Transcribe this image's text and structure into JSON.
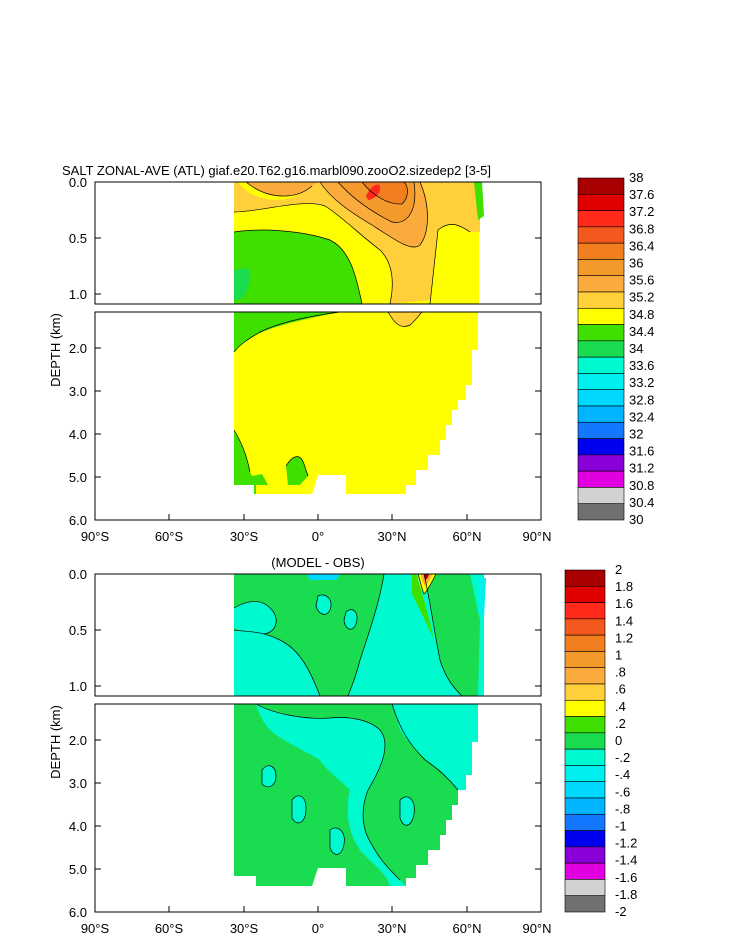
{
  "chart_data": [
    {
      "type": "heatmap",
      "title": "SALT ZONAL-AVE (ATL) giaf.e20.T62.g16.marbl090.zooO2.sizedep2 [3-5]",
      "ylabel": "DEPTH (km)",
      "xlabel": "",
      "x_ticks": [
        "90°S",
        "60°S",
        "30°S",
        "0°",
        "30°N",
        "60°N",
        "90°N"
      ],
      "x_range": [
        -90,
        90
      ],
      "y_ticks_upper": [
        "0.0",
        "0.5",
        "1.0"
      ],
      "y_ticks_lower": [
        "2.0",
        "3.0",
        "4.0",
        "5.0",
        "6.0"
      ],
      "y_range_upper_km": [
        0,
        1.1
      ],
      "y_range_lower_km": [
        1.1,
        6.0
      ],
      "legend_placement": "right",
      "colorbar_labels": [
        "38",
        "37.6",
        "37.2",
        "36.8",
        "36.4",
        "36",
        "35.6",
        "35.2",
        "34.8",
        "34.4",
        "34",
        "33.6",
        "33.2",
        "32.8",
        "32.4",
        "32",
        "31.6",
        "31.2",
        "30.8",
        "30.4",
        "30"
      ],
      "colorbar_colors": [
        "#a80000",
        "#e10000",
        "#ff2a1a",
        "#f3581c",
        "#f27f1f",
        "#f4992b",
        "#fbab3b",
        "#ffd03a",
        "#ffff00",
        "#3fdf00",
        "#1adc50",
        "#00fad0",
        "#00f0f0",
        "#00d8ff",
        "#00b4ff",
        "#1478ff",
        "#0000f0",
        "#8a00d8",
        "#e000e0",
        "#d2d2d2",
        "#707070"
      ],
      "data_extent_lat": [
        -34,
        66
      ],
      "dominant_values": {
        "deep_water": 34.9,
        "southern_intermediate_water": 34.5,
        "subtropical_max_south": 36.8,
        "subtropical_max_north": 37.4
      }
    },
    {
      "type": "heatmap",
      "title": "(MODEL - OBS)",
      "ylabel": "DEPTH (km)",
      "xlabel": "",
      "x_ticks": [
        "90°S",
        "60°S",
        "30°S",
        "0°",
        "30°N",
        "60°N",
        "90°N"
      ],
      "x_range": [
        -90,
        90
      ],
      "y_ticks_upper": [
        "0.0",
        "0.5",
        "1.0"
      ],
      "y_ticks_lower": [
        "2.0",
        "3.0",
        "4.0",
        "5.0",
        "6.0"
      ],
      "y_range_upper_km": [
        0,
        1.1
      ],
      "y_range_lower_km": [
        1.1,
        6.0
      ],
      "legend_placement": "right",
      "colorbar_labels": [
        "2",
        "1.8",
        "1.6",
        "1.4",
        "1.2",
        "1",
        ".8",
        ".6",
        ".4",
        ".2",
        "0",
        "-.2",
        "-.4",
        "-.6",
        "-.8",
        "-1",
        "-1.2",
        "-1.4",
        "-1.6",
        "-1.8",
        "-2"
      ],
      "colorbar_colors": [
        "#a80000",
        "#e10000",
        "#ff2a1a",
        "#f3581c",
        "#f27f1f",
        "#f4992b",
        "#fbab3b",
        "#ffd03a",
        "#ffff00",
        "#3fdf00",
        "#1adc50",
        "#00fad0",
        "#00f0f0",
        "#00d8ff",
        "#00b4ff",
        "#1478ff",
        "#0000f0",
        "#8a00d8",
        "#e000e0",
        "#d2d2d2",
        "#707070"
      ],
      "data_extent_lat": [
        -34,
        66
      ],
      "dominant_values": {
        "background": 0.1,
        "negative_bias_patches": -0.1,
        "surface_max_bias": 1.0
      }
    }
  ]
}
